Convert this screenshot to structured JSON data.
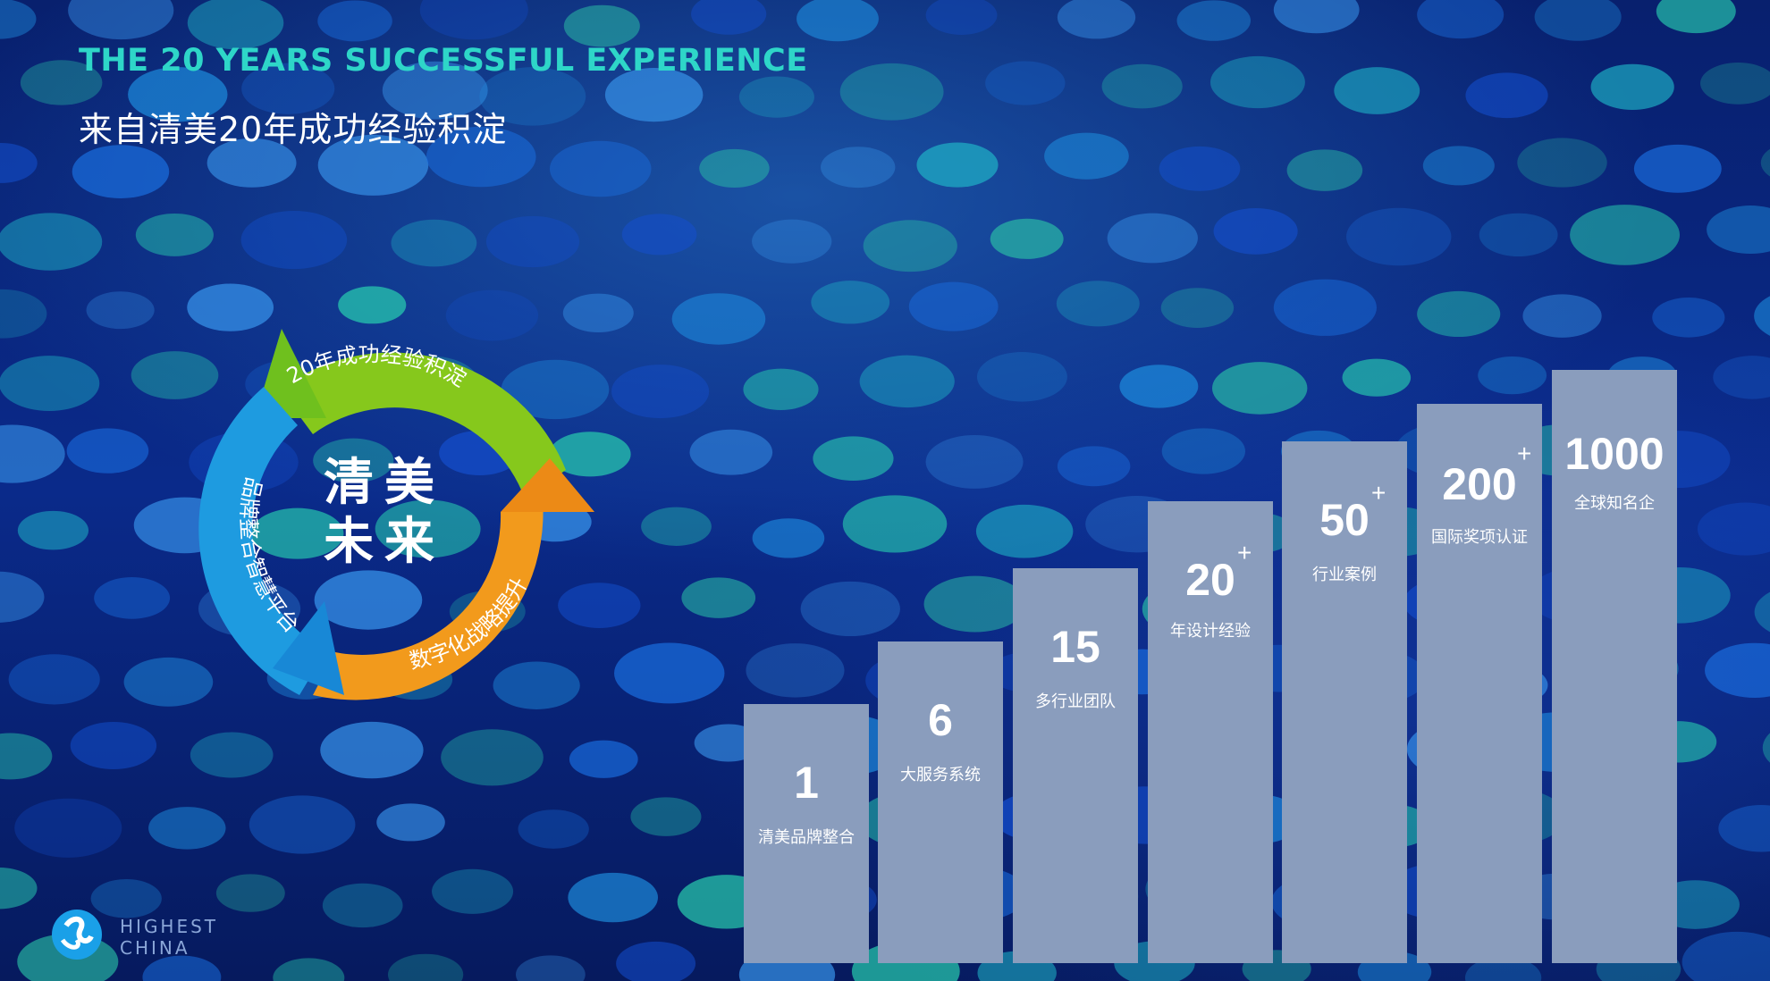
{
  "header": {
    "title_en": "THE 20 YEARS SUCCESSFUL EXPERIENCE",
    "title_cn": "来自清美20年成功经验积淀"
  },
  "cycle": {
    "center_line1": "清美",
    "center_line2": "未来",
    "arcs": [
      {
        "label": "20年成功经验积淀",
        "color": "#8ccc1a"
      },
      {
        "label": "数字化战略提升",
        "color": "#f0901a"
      },
      {
        "label": "品牌整合智慧平台",
        "color": "#1a9ae0"
      }
    ]
  },
  "stats": [
    {
      "value": "1",
      "plus": "",
      "label": "清美品牌整合"
    },
    {
      "value": "6",
      "plus": "",
      "label": "大服务系统"
    },
    {
      "value": "15",
      "plus": "",
      "label": "多行业团队"
    },
    {
      "value": "20",
      "plus": "+",
      "label": "年设计经验"
    },
    {
      "value": "50",
      "plus": "+",
      "label": "行业案例"
    },
    {
      "value": "200",
      "plus": "+",
      "label": "国际奖项认证"
    },
    {
      "value": "1000",
      "plus": "",
      "label": "全球知名企"
    }
  ],
  "logo": {
    "line1": "HIGHEST",
    "line2": "CHINA"
  },
  "colors": {
    "accent_title": "#2ed6c8",
    "bar_fill": "#8a9dbd",
    "background": "#061a5e"
  }
}
